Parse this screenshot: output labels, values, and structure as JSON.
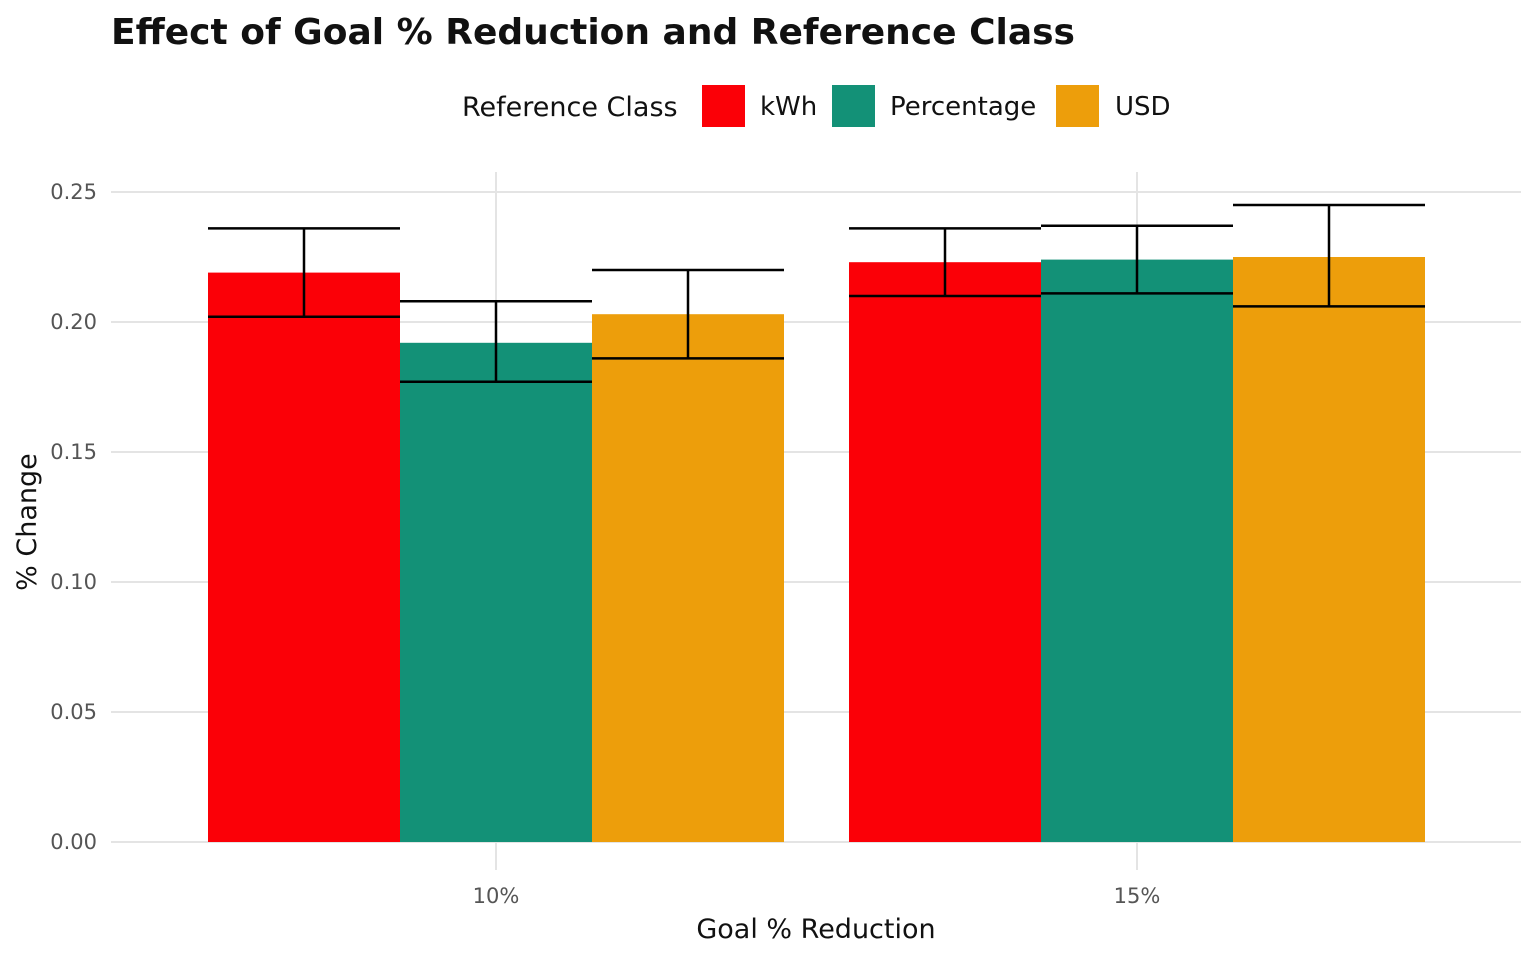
{
  "colors": {
    "kWh": "#fb0007",
    "Percentage": "#139177",
    "USD": "#ed9e0b",
    "grid": "#e4e4e4",
    "error_bar": "#000000"
  },
  "chart_data": {
    "type": "bar",
    "title": "Effect of Goal % Reduction and Reference Class",
    "xlabel": "Goal % Reduction",
    "ylabel": "% Change",
    "categories": [
      "10%",
      "15%"
    ],
    "ylim": [
      0,
      0.25
    ],
    "yticks": [
      "0.00",
      "0.05",
      "0.10",
      "0.15",
      "0.20",
      "0.25"
    ],
    "ytick_values": [
      0,
      0.05,
      0.1,
      0.15,
      0.2,
      0.25
    ],
    "grid": true,
    "legend": {
      "title": "Reference Class",
      "placement": "top"
    },
    "series": [
      {
        "name": "kWh",
        "values": [
          0.219,
          0.223
        ],
        "error_low": [
          0.202,
          0.21
        ],
        "error_high": [
          0.236,
          0.236
        ]
      },
      {
        "name": "Percentage",
        "values": [
          0.192,
          0.224
        ],
        "error_low": [
          0.177,
          0.211
        ],
        "error_high": [
          0.208,
          0.237
        ]
      },
      {
        "name": "USD",
        "values": [
          0.203,
          0.225
        ],
        "error_low": [
          0.186,
          0.206
        ],
        "error_high": [
          0.22,
          0.245
        ]
      }
    ]
  }
}
